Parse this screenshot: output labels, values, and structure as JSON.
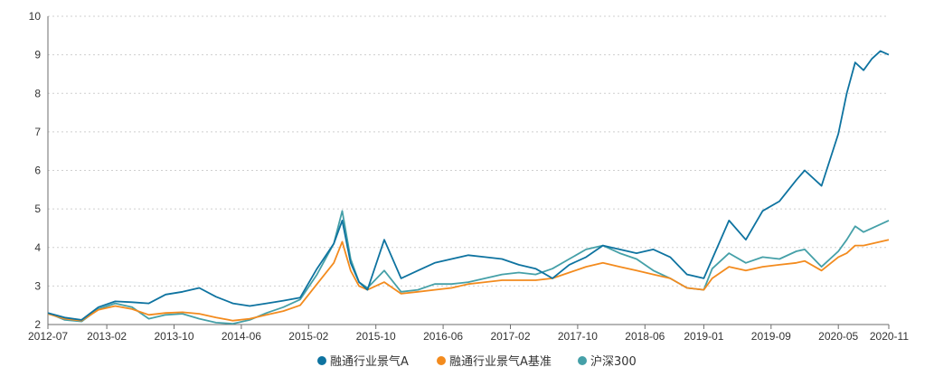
{
  "chart_data": {
    "type": "line",
    "title": "",
    "xlabel": "",
    "ylabel": "",
    "x_ticks": [
      "2012-07",
      "2013-02",
      "2013-10",
      "2014-06",
      "2015-02",
      "2015-10",
      "2016-06",
      "2017-02",
      "2017-10",
      "2018-06",
      "2019-01",
      "2019-09",
      "2020-05",
      "2020-11"
    ],
    "y_ticks": [
      2,
      3,
      4,
      5,
      6,
      7,
      8,
      9,
      10
    ],
    "ylim": [
      2,
      10
    ],
    "grid": "horizontal-dashed",
    "legend_position": "bottom-center",
    "x": [
      "2012-07",
      "2012-09",
      "2012-11",
      "2013-01",
      "2013-03",
      "2013-05",
      "2013-07",
      "2013-09",
      "2013-11",
      "2014-01",
      "2014-03",
      "2014-05",
      "2014-07",
      "2014-09",
      "2014-11",
      "2015-01",
      "2015-03",
      "2015-05",
      "2015-06",
      "2015-07",
      "2015-08",
      "2015-09",
      "2015-11",
      "2016-01",
      "2016-03",
      "2016-05",
      "2016-07",
      "2016-09",
      "2016-11",
      "2017-01",
      "2017-03",
      "2017-05",
      "2017-07",
      "2017-09",
      "2017-11",
      "2018-01",
      "2018-03",
      "2018-05",
      "2018-07",
      "2018-09",
      "2018-11",
      "2019-01",
      "2019-02",
      "2019-04",
      "2019-06",
      "2019-08",
      "2019-10",
      "2019-12",
      "2020-01",
      "2020-03",
      "2020-05",
      "2020-06",
      "2020-07",
      "2020-08",
      "2020-09",
      "2020-10",
      "2020-11"
    ],
    "series": [
      {
        "name": "融通行业景气A",
        "color": "#0e73a0",
        "values": [
          2.3,
          2.18,
          2.12,
          2.45,
          2.6,
          2.58,
          2.55,
          2.78,
          2.85,
          2.95,
          2.72,
          2.55,
          2.48,
          2.55,
          2.62,
          2.7,
          3.45,
          4.1,
          4.7,
          3.6,
          3.1,
          2.9,
          4.2,
          3.2,
          3.4,
          3.6,
          3.7,
          3.8,
          3.75,
          3.7,
          3.55,
          3.45,
          3.2,
          3.55,
          3.75,
          4.05,
          3.95,
          3.85,
          3.95,
          3.75,
          3.3,
          3.2,
          3.7,
          4.7,
          4.2,
          4.95,
          5.2,
          5.75,
          6.0,
          5.6,
          6.95,
          8.0,
          8.8,
          8.6,
          8.9,
          9.1,
          9.0
        ]
      },
      {
        "name": "融通行业景气A基准",
        "color": "#f38b1e",
        "values": [
          2.28,
          2.15,
          2.1,
          2.38,
          2.48,
          2.4,
          2.25,
          2.3,
          2.32,
          2.28,
          2.18,
          2.1,
          2.15,
          2.25,
          2.35,
          2.5,
          3.05,
          3.6,
          4.15,
          3.4,
          3.0,
          2.9,
          3.1,
          2.8,
          2.85,
          2.9,
          2.95,
          3.05,
          3.1,
          3.15,
          3.15,
          3.15,
          3.2,
          3.35,
          3.5,
          3.6,
          3.5,
          3.4,
          3.3,
          3.2,
          2.95,
          2.9,
          3.2,
          3.5,
          3.4,
          3.5,
          3.55,
          3.6,
          3.65,
          3.4,
          3.75,
          3.85,
          4.05,
          4.05,
          4.1,
          4.15,
          4.2
        ]
      },
      {
        "name": "沪深300",
        "color": "#45a0a8",
        "values": [
          2.3,
          2.12,
          2.08,
          2.4,
          2.55,
          2.45,
          2.15,
          2.25,
          2.28,
          2.15,
          2.05,
          2.02,
          2.12,
          2.3,
          2.45,
          2.65,
          3.3,
          4.1,
          4.95,
          3.7,
          3.1,
          2.95,
          3.4,
          2.85,
          2.9,
          3.05,
          3.05,
          3.1,
          3.2,
          3.3,
          3.35,
          3.3,
          3.45,
          3.7,
          3.95,
          4.05,
          3.85,
          3.7,
          3.4,
          3.2,
          2.95,
          2.9,
          3.45,
          3.85,
          3.6,
          3.75,
          3.7,
          3.9,
          3.95,
          3.5,
          3.9,
          4.2,
          4.55,
          4.4,
          4.5,
          4.6,
          4.7
        ]
      }
    ]
  }
}
